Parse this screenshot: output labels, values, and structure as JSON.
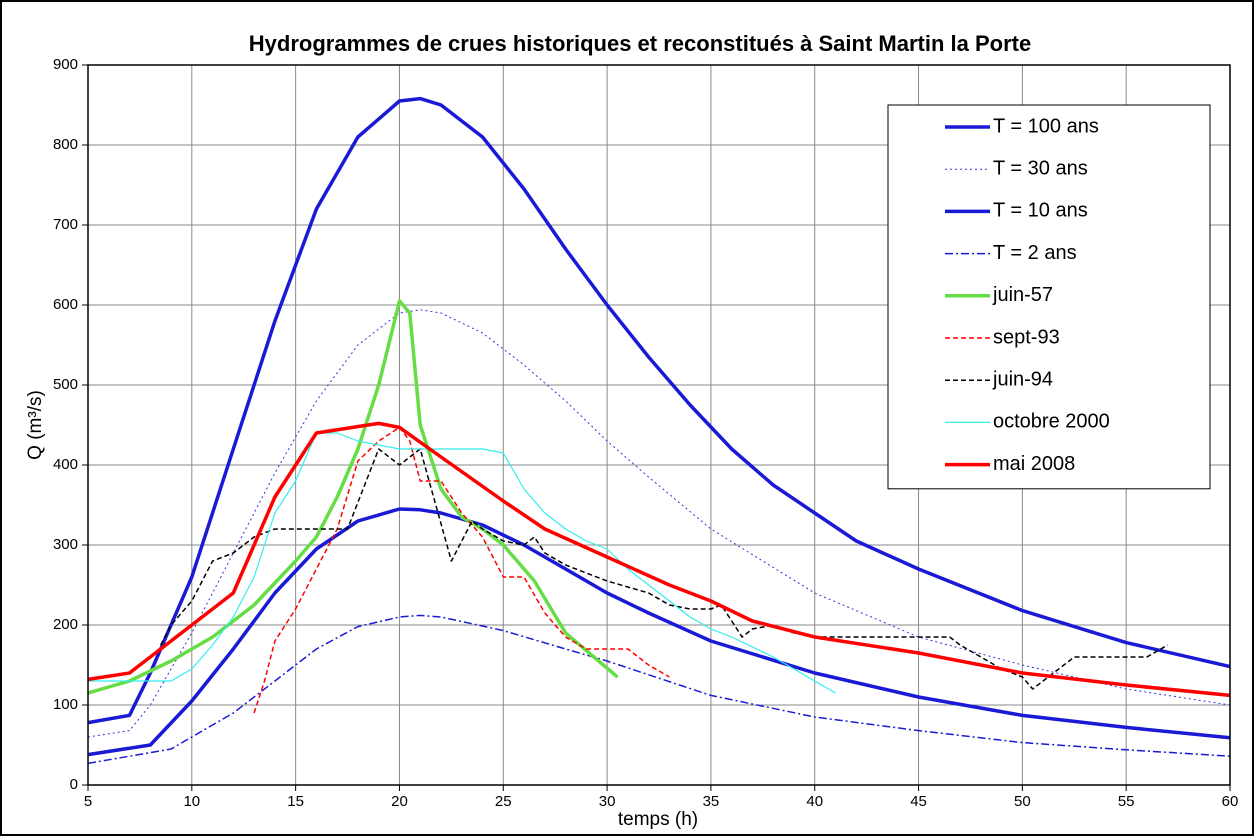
{
  "chart_data": {
    "type": "line",
    "title": "Hydrogrammes de crues historiques et reconstitués à Saint Martin la Porte",
    "xlabel": "temps (h)",
    "ylabel": "Q (m³/s)",
    "xlim": [
      5,
      60
    ],
    "xticks": [
      5,
      10,
      15,
      20,
      25,
      30,
      35,
      40,
      45,
      50,
      55,
      60
    ],
    "ylim": [
      0,
      900
    ],
    "yticks": [
      0,
      100,
      200,
      300,
      400,
      500,
      600,
      700,
      800,
      900
    ],
    "grid": true,
    "legend": "upper right",
    "series": [
      {
        "name": "T = 100 ans",
        "color": "#1a1ad6",
        "line": "solid-thick",
        "x": [
          5,
          7,
          8,
          10,
          12,
          14,
          16,
          18,
          20,
          21,
          22,
          24,
          26,
          28,
          30,
          32,
          34,
          36,
          38,
          40,
          42,
          45,
          50,
          55,
          60
        ],
        "values": [
          78,
          87,
          140,
          260,
          420,
          580,
          720,
          810,
          855,
          858,
          850,
          810,
          745,
          670,
          600,
          535,
          475,
          420,
          375,
          340,
          305,
          270,
          218,
          178,
          148
        ]
      },
      {
        "name": "T = 30 ans",
        "color": "#3333dd",
        "line": "dotted-thin",
        "x": [
          5,
          7,
          8,
          10,
          12,
          14,
          16,
          18,
          20,
          21,
          22,
          24,
          26,
          28,
          30,
          32,
          35,
          40,
          45,
          50,
          55,
          60
        ],
        "values": [
          60,
          68,
          100,
          190,
          290,
          390,
          480,
          550,
          590,
          594,
          590,
          565,
          525,
          480,
          430,
          385,
          320,
          240,
          185,
          150,
          120,
          100
        ]
      },
      {
        "name": "T = 10 ans",
        "color": "#1a1ad6",
        "line": "solid-thick",
        "x": [
          5,
          8,
          10,
          12,
          14,
          16,
          18,
          20,
          21,
          22,
          24,
          26,
          28,
          30,
          32,
          35,
          40,
          45,
          50,
          55,
          60
        ],
        "values": [
          38,
          50,
          105,
          170,
          240,
          295,
          330,
          345,
          344,
          340,
          325,
          300,
          270,
          240,
          215,
          180,
          140,
          110,
          87,
          72,
          59
        ]
      },
      {
        "name": "T = 2 ans",
        "color": "#1a1ad6",
        "line": "dashdot",
        "x": [
          5,
          9,
          12,
          14,
          16,
          18,
          20,
          21,
          22,
          25,
          28,
          30,
          35,
          40,
          45,
          50,
          55,
          60
        ],
        "values": [
          27,
          45,
          90,
          130,
          170,
          198,
          210,
          212,
          210,
          193,
          170,
          155,
          112,
          85,
          68,
          53,
          44,
          36
        ]
      },
      {
        "name": "juin-57",
        "color": "#66dd44",
        "line": "solid-thick",
        "x": [
          5,
          7,
          9,
          11,
          13,
          15,
          16,
          17,
          18,
          19,
          20,
          20.5,
          21,
          22,
          23,
          24,
          25,
          26.5,
          28,
          30.5
        ],
        "values": [
          115,
          130,
          155,
          185,
          225,
          280,
          310,
          360,
          420,
          500,
          605,
          590,
          450,
          370,
          335,
          320,
          300,
          255,
          190,
          135
        ]
      },
      {
        "name": "sept-93",
        "color": "#ff0000",
        "line": "dashed",
        "x": [
          13,
          13.5,
          14,
          15,
          16,
          17,
          18,
          19,
          20,
          20.5,
          21,
          22,
          23,
          24,
          25,
          26,
          27,
          28,
          29,
          31,
          32,
          33
        ],
        "values": [
          90,
          130,
          180,
          220,
          270,
          320,
          405,
          430,
          447,
          430,
          380,
          380,
          340,
          310,
          260,
          260,
          215,
          185,
          170,
          170,
          150,
          135
        ]
      },
      {
        "name": "juin-94",
        "color": "#000000",
        "line": "dashed",
        "x": [
          8.5,
          9,
          10,
          11,
          12,
          13,
          14,
          16,
          17.5,
          19,
          20,
          21,
          22.5,
          23.5,
          24,
          25,
          26,
          26.5,
          27,
          28,
          30,
          32,
          33,
          34,
          35,
          35.5,
          36.5,
          37,
          38,
          39,
          40,
          42,
          44,
          46.5,
          47,
          49,
          50,
          50.5,
          51.5,
          52.5,
          56,
          57
        ],
        "values": [
          175,
          200,
          230,
          280,
          290,
          310,
          320,
          320,
          320,
          420,
          400,
          420,
          280,
          330,
          320,
          305,
          300,
          310,
          290,
          275,
          255,
          240,
          225,
          220,
          220,
          225,
          185,
          195,
          200,
          190,
          185,
          185,
          185,
          185,
          175,
          145,
          135,
          120,
          140,
          160,
          160,
          175
        ]
      },
      {
        "name": "octobre 2000",
        "color": "#33eeee",
        "line": "solid-thin",
        "x": [
          5,
          7,
          9,
          10,
          11,
          12,
          13,
          14,
          15,
          16,
          17,
          18,
          20,
          22,
          23,
          24,
          25,
          26,
          27,
          28,
          29,
          30,
          31,
          32,
          33,
          34,
          35,
          36,
          38,
          40,
          41
        ],
        "values": [
          130,
          130,
          130,
          145,
          175,
          210,
          260,
          340,
          380,
          440,
          440,
          430,
          420,
          420,
          420,
          420,
          415,
          370,
          340,
          320,
          305,
          295,
          270,
          250,
          230,
          210,
          195,
          185,
          160,
          130,
          115
        ]
      },
      {
        "name": "mai 2008",
        "color": "#ff0000",
        "line": "solid-thick",
        "x": [
          5,
          7,
          10,
          12,
          14,
          16,
          19,
          20,
          22,
          25,
          27,
          30,
          33,
          35,
          37,
          40,
          45,
          50,
          55,
          60
        ],
        "values": [
          132,
          140,
          200,
          240,
          360,
          440,
          452,
          447,
          410,
          355,
          320,
          285,
          250,
          230,
          205,
          185,
          165,
          140,
          125,
          112
        ]
      }
    ]
  }
}
